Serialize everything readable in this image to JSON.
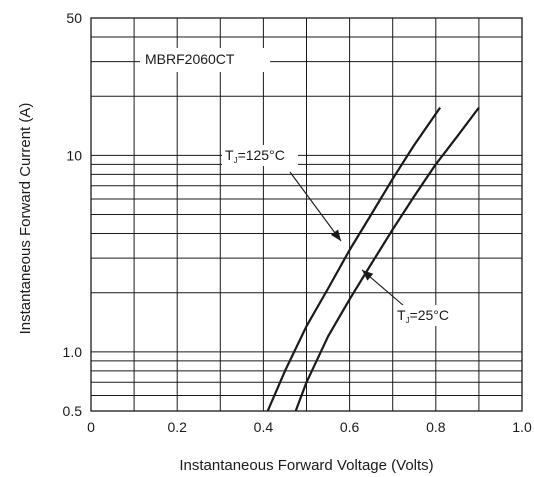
{
  "chart_data": {
    "type": "line",
    "title": "",
    "xlabel": "Instantaneous Forward Voltage (Volts)",
    "ylabel": "Instantaneous Forward Current (A)",
    "xlim": [
      0,
      1.0
    ],
    "ylim": [
      0.5,
      50
    ],
    "y_scale": "log",
    "grid": true,
    "x_ticks": [
      0,
      0.2,
      0.4,
      0.6,
      0.8,
      1.0
    ],
    "x_tick_labels": [
      "0",
      "0.2",
      "0.4",
      "0.6",
      "0.8",
      "1.0"
    ],
    "y_ticks": [
      0.5,
      1.0,
      10,
      50
    ],
    "y_tick_labels": [
      "0.5",
      "1.0",
      "10",
      "50"
    ],
    "part_label": "MBRF2060CT",
    "series": [
      {
        "name": "TJ=125°C",
        "label_main": "T",
        "label_sub": "J",
        "label_rest": "=125°C",
        "points": [
          [
            0.41,
            0.5
          ],
          [
            0.45,
            0.8
          ],
          [
            0.5,
            1.35
          ],
          [
            0.55,
            2.1
          ],
          [
            0.6,
            3.3
          ],
          [
            0.65,
            5.0
          ],
          [
            0.7,
            7.6
          ],
          [
            0.75,
            11.3
          ],
          [
            0.81,
            17.5
          ]
        ]
      },
      {
        "name": "TJ=25°C",
        "label_main": "T",
        "label_sub": "J",
        "label_rest": "=25°C",
        "points": [
          [
            0.475,
            0.5
          ],
          [
            0.5,
            0.7
          ],
          [
            0.55,
            1.2
          ],
          [
            0.6,
            1.85
          ],
          [
            0.65,
            2.8
          ],
          [
            0.7,
            4.2
          ],
          [
            0.75,
            6.2
          ],
          [
            0.8,
            9.0
          ],
          [
            0.85,
            12.5
          ],
          [
            0.9,
            17.5
          ]
        ]
      }
    ]
  }
}
